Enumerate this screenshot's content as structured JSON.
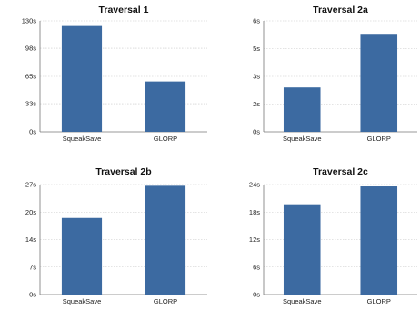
{
  "chart_data": [
    {
      "type": "bar",
      "title": "Traversal 1",
      "categories": [
        "SqueakSave",
        "GLORP"
      ],
      "values": [
        124,
        59
      ],
      "ylim": [
        0,
        130
      ],
      "yticks": [
        0,
        33,
        65,
        98,
        130
      ],
      "ytick_labels": [
        "0s",
        "33s",
        "65s",
        "98s",
        "130s"
      ],
      "grid": true,
      "color": "#3c6aa1"
    },
    {
      "type": "bar",
      "title": "Traversal 2a",
      "categories": [
        "SqueakSave",
        "GLORP"
      ],
      "values": [
        2.4,
        5.3
      ],
      "ylim": [
        0,
        6
      ],
      "yticks": [
        0,
        1.5,
        3,
        4.5,
        6
      ],
      "ytick_labels": [
        "0s",
        "2s",
        "3s",
        "5s",
        "6s"
      ],
      "grid": true,
      "color": "#3c6aa1"
    },
    {
      "type": "bar",
      "title": "Traversal 2b",
      "categories": [
        "SqueakSave",
        "GLORP"
      ],
      "values": [
        18.8,
        26.7
      ],
      "ylim": [
        0,
        27
      ],
      "yticks": [
        0,
        6.75,
        13.5,
        20.25,
        27
      ],
      "ytick_labels": [
        "0s",
        "7s",
        "14s",
        "20s",
        "27s"
      ],
      "grid": true,
      "color": "#3c6aa1"
    },
    {
      "type": "bar",
      "title": "Traversal 2c",
      "categories": [
        "SqueakSave",
        "GLORP"
      ],
      "values": [
        19.7,
        23.6
      ],
      "ylim": [
        0,
        24
      ],
      "yticks": [
        0,
        6,
        12,
        18,
        24
      ],
      "ytick_labels": [
        "0s",
        "6s",
        "12s",
        "18s",
        "24s"
      ],
      "grid": true,
      "color": "#3c6aa1"
    }
  ]
}
